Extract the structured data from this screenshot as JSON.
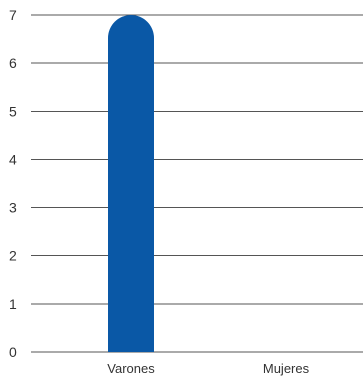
{
  "chart_data": {
    "type": "bar",
    "categories": [
      "Varones",
      "Mujeres"
    ],
    "values": [
      7,
      0
    ],
    "ylim": [
      0,
      7
    ],
    "yticks": [
      0,
      1,
      2,
      3,
      4,
      5,
      6,
      7
    ],
    "grid": true,
    "bar_color": "#0a58a6",
    "title": "",
    "xlabel": "",
    "ylabel": ""
  }
}
